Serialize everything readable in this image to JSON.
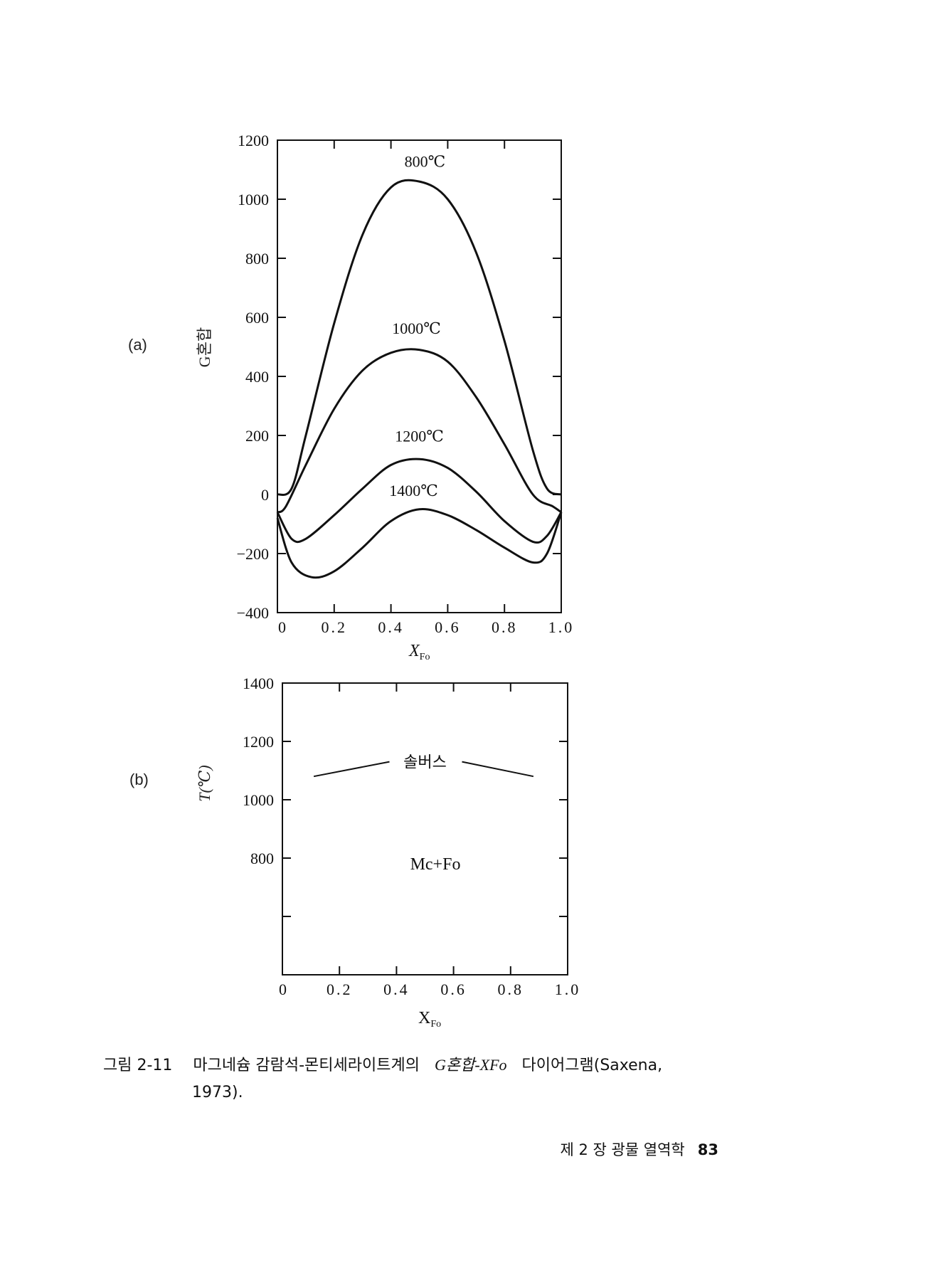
{
  "chart_data": [
    {
      "type": "line",
      "panel": "(a)",
      "ylabel": "G혼합",
      "xlabel": "XFo",
      "xlim": [
        0,
        1.0
      ],
      "ylim": [
        -400,
        1200
      ],
      "xticks": [
        "0",
        "0.2",
        "0.4",
        "0.6",
        "0.8",
        "1.0"
      ],
      "yticks": [
        "1200",
        "1000",
        "800",
        "600",
        "400",
        "200",
        "0",
        "−200",
        "−400"
      ],
      "series": [
        {
          "name": "800℃",
          "x": [
            0,
            0.05,
            0.1,
            0.2,
            0.3,
            0.4,
            0.5,
            0.6,
            0.7,
            0.8,
            0.9,
            0.95,
            1.0
          ],
          "y": [
            0,
            20,
            200,
            580,
            880,
            1040,
            1060,
            1000,
            820,
            520,
            150,
            20,
            0
          ]
        },
        {
          "name": "1000℃",
          "x": [
            0,
            0.03,
            0.1,
            0.2,
            0.3,
            0.4,
            0.5,
            0.6,
            0.7,
            0.8,
            0.9,
            0.97,
            1.0
          ],
          "y": [
            -60,
            -40,
            100,
            290,
            420,
            480,
            490,
            450,
            330,
            170,
            0,
            -40,
            -60
          ]
        },
        {
          "name": "1200℃",
          "x": [
            0,
            0.05,
            0.1,
            0.2,
            0.3,
            0.4,
            0.5,
            0.6,
            0.7,
            0.8,
            0.9,
            0.95,
            1.0
          ],
          "y": [
            -60,
            -150,
            -150,
            -70,
            20,
            100,
            120,
            90,
            10,
            -90,
            -160,
            -140,
            -60
          ]
        },
        {
          "name": "1400℃",
          "x": [
            0,
            0.05,
            0.12,
            0.2,
            0.3,
            0.4,
            0.5,
            0.6,
            0.7,
            0.8,
            0.9,
            0.95,
            1.0
          ],
          "y": [
            -80,
            -230,
            -280,
            -260,
            -180,
            -90,
            -50,
            -70,
            -120,
            -180,
            -230,
            -200,
            -60
          ]
        }
      ]
    },
    {
      "type": "line",
      "panel": "(b)",
      "ylabel": "T(℃)",
      "xlabel": "XFo",
      "xlim": [
        0,
        1.0
      ],
      "ylim": [
        400,
        1400
      ],
      "xticks": [
        "0",
        "0.2",
        "0.4",
        "0.6",
        "0.8",
        "1.0"
      ],
      "yticks": [
        "1400",
        "1200",
        "1000",
        "800"
      ],
      "series": [
        {
          "name": "솔버스",
          "x": [
            0.11,
            0.5,
            0.88
          ],
          "y": [
            1080,
            1140,
            1080
          ]
        }
      ],
      "annotations": [
        "Mc+Fo"
      ]
    }
  ],
  "caption": {
    "figure_number": "그림 2-11",
    "text_before": "마그네슘 감람석-몬티세라이트계의",
    "formula": "G혼합-XFo",
    "text_after": "다이어그램(Saxena,",
    "line2": "1973)."
  },
  "footer": {
    "chapter": "제 2 장 광물 열역학",
    "page_number": "83"
  }
}
